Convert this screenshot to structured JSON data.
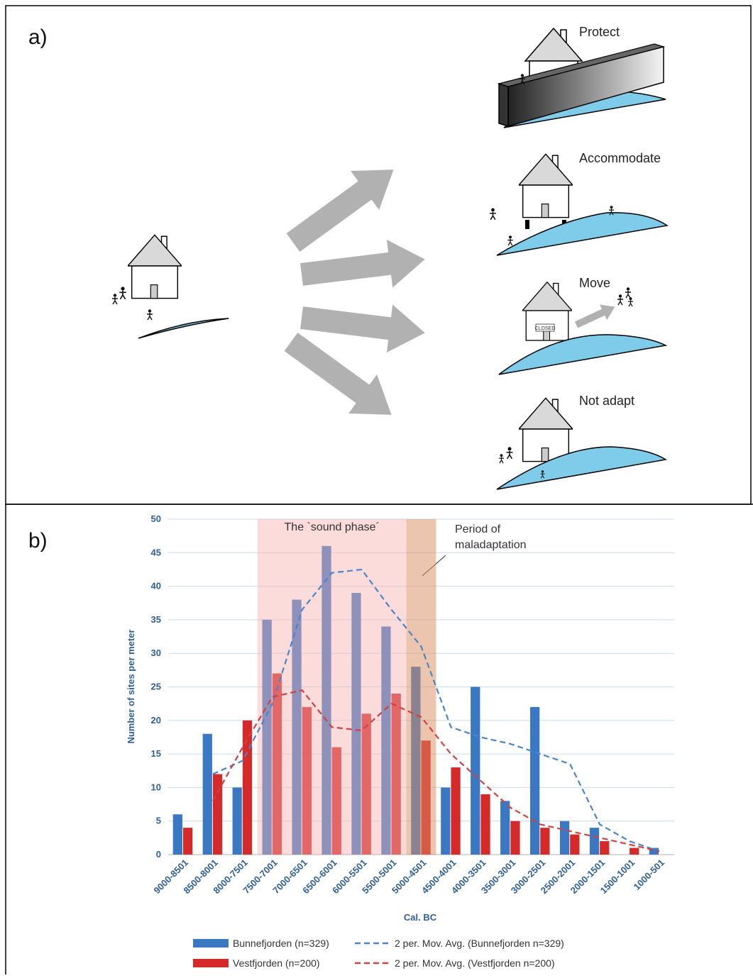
{
  "panel_a": {
    "label": "a)",
    "options": [
      "Protect",
      "Accommodate",
      "Move",
      "Not adapt"
    ],
    "sign": "CLOSED"
  },
  "panel_b": {
    "label": "b)"
  },
  "chart_data": {
    "type": "bar",
    "y_label": "Number of sites per meter",
    "x_label": "Cal. BC",
    "categories": [
      "9000-8501",
      "8500-8001",
      "8000-7501",
      "7500-7001",
      "7000-6501",
      "6500-6001",
      "6000-5501",
      "5500-5001",
      "5000-4501",
      "4500-4001",
      "4000-3501",
      "3500-3001",
      "3000-2501",
      "2500-2001",
      "2000-1501",
      "1500-1001",
      "1000-501"
    ],
    "series": [
      {
        "name": "Bunnefjorden (n=329)",
        "color": "#3a78c3",
        "type": "bar",
        "values": [
          6,
          18,
          10,
          35,
          38,
          46,
          39,
          34,
          28,
          10,
          25,
          8,
          22,
          5,
          4,
          0,
          1
        ]
      },
      {
        "name": "Vestfjorden (n=200)",
        "color": "#d42a2a",
        "type": "bar",
        "values": [
          4,
          12,
          20,
          27,
          22,
          16,
          21,
          24,
          17,
          13,
          9,
          5,
          4,
          3,
          2,
          1,
          0
        ]
      },
      {
        "name": "2 per. Mov. Avg. (Bunnefjorden  n=329)",
        "color": "#4a84cc",
        "type": "line",
        "dashed": true,
        "values": [
          null,
          12,
          14,
          22.5,
          36.5,
          42,
          42.5,
          36.5,
          31,
          19,
          17.5,
          16.5,
          15,
          13.5,
          4.5,
          2,
          0.5
        ]
      },
      {
        "name": "2 per. Mov. Avg. (Vestfjorden  n=200)",
        "color": "#d44040",
        "type": "line",
        "dashed": true,
        "values": [
          null,
          8,
          16,
          23.5,
          24.5,
          19,
          18.5,
          22.5,
          20.5,
          15,
          11,
          7,
          4.5,
          3.5,
          2.5,
          1.5,
          0.5
        ]
      }
    ],
    "spans": [
      {
        "label": "The `sound phase´",
        "span": [
          "7500-7001",
          "5500-5001"
        ],
        "color": "#f7b2b0"
      },
      {
        "label": "Period of maladaptation",
        "span": [
          "5000-4501",
          "5000-4501"
        ],
        "color": "#d98c5e"
      }
    ],
    "ylim": [
      0,
      50
    ],
    "yticks": [
      0,
      5,
      10,
      15,
      20,
      25,
      30,
      35,
      40,
      45,
      50
    ],
    "grid": true
  }
}
